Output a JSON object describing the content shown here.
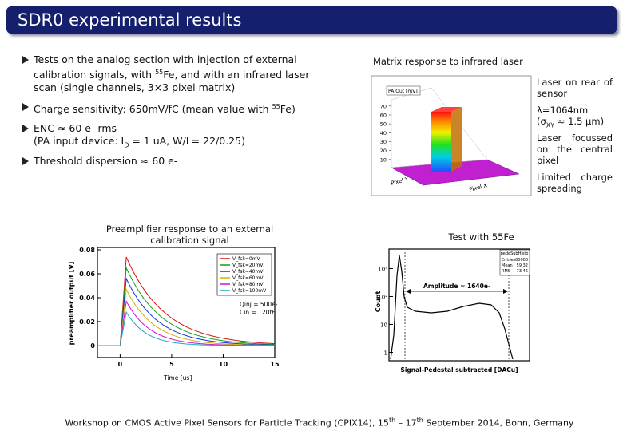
{
  "title": "SDR0 experimental results",
  "bullets": [
    [
      [
        {
          "t": "Tests on the analog section with injection of external calibration signals, with "
        },
        {
          "sup": "55"
        },
        {
          "t": "Fe, and with an infrared laser scan (single channels, 3×3 pixel matrix)"
        }
      ]
    ],
    [
      [
        {
          "t": "Charge sensitivity: 650mV/fC (mean value with "
        },
        {
          "sup": "55"
        },
        {
          "t": "Fe)"
        }
      ]
    ],
    [
      [
        {
          "t": "ENC ≈ 60 e- rms"
        }
      ],
      [
        {
          "t": "(PA input device: I"
        },
        {
          "sub": "D"
        },
        {
          "t": " = 1 uA, W/L= 22/0.25)"
        }
      ]
    ],
    [
      [
        {
          "t": "Threshold dispersion ≈ 60 e-"
        }
      ]
    ]
  ],
  "laser": {
    "heading": "Matrix response to infrared laser",
    "notes": [
      [
        [
          {
            "t": "Laser on rear of sensor"
          }
        ]
      ],
      [
        [
          {
            "t": "λ=1064nm"
          }
        ],
        [
          {
            "t": "(σ"
          },
          {
            "sub": "XY"
          },
          {
            "t": " ≈ 1.5 μm)"
          }
        ]
      ],
      [
        [
          {
            "t": "Laser focussed on the central pixel"
          }
        ]
      ],
      [
        [
          {
            "t": "Limited charge spreading"
          }
        ]
      ]
    ],
    "plot_title": "PA Out [mV]",
    "zticks": [
      10,
      20,
      30,
      40,
      50,
      60,
      70
    ],
    "xlabel": "Pixel X",
    "ylabel": "Pixel Y"
  },
  "chart_data": [
    {
      "type": "line",
      "title": "Preamplifier response to an external calibration signal",
      "xlabel": "Time [us]",
      "ylabel": "preamplifier output [V]",
      "xlim": [
        -2.2,
        15
      ],
      "xticks": [
        0,
        5,
        10,
        15
      ],
      "ylim": [
        -0.01,
        0.082
      ],
      "yticks": [
        0,
        0.02,
        0.04,
        0.06,
        0.08
      ],
      "annotations": [
        "Qinj = 500e-",
        "Cin = 120fF"
      ],
      "series": [
        {
          "name": "V_fsk=0mV",
          "color": "#e01010",
          "peak": 0.074
        },
        {
          "name": "V_fsk=20mV",
          "color": "#10a010",
          "peak": 0.065
        },
        {
          "name": "V_fsk=40mV",
          "color": "#1030e0",
          "peak": 0.056
        },
        {
          "name": "V_fsk=60mV",
          "color": "#d0b000",
          "peak": 0.047
        },
        {
          "name": "V_fsk=80mV",
          "color": "#d010d0",
          "peak": 0.037
        },
        {
          "name": "V_fsk=100mV",
          "color": "#10b0c0",
          "peak": 0.028
        }
      ]
    },
    {
      "type": "histogram",
      "title": "Test with 55Fe",
      "xlabel": "Signal-Pedestal subtracted [DACu]",
      "ylabel": "Count",
      "annotation": "Amplitude ≈ 1640e-",
      "stats": [
        "pedeSubHisto",
        "Entries",
        "80006",
        "Mean",
        "59.32",
        "RMS",
        "73.46"
      ],
      "log_y": true,
      "ylim": [
        0.5,
        5000
      ],
      "yticks": [
        {
          "value": 1,
          "label": "1"
        },
        {
          "value": 10,
          "label": "10"
        },
        {
          "value": 100,
          "label": "10²"
        },
        {
          "value": 1000,
          "label": "10³"
        }
      ]
    }
  ],
  "footer": [
    [
      {
        "t": "Workshop on CMOS Active Pixel Sensors for Particle Tracking (CPIX14), 15"
      },
      {
        "sup": "th"
      },
      {
        "t": " – 17"
      },
      {
        "sup": "th"
      },
      {
        "t": " September 2014, Bonn, Germany"
      }
    ]
  ]
}
